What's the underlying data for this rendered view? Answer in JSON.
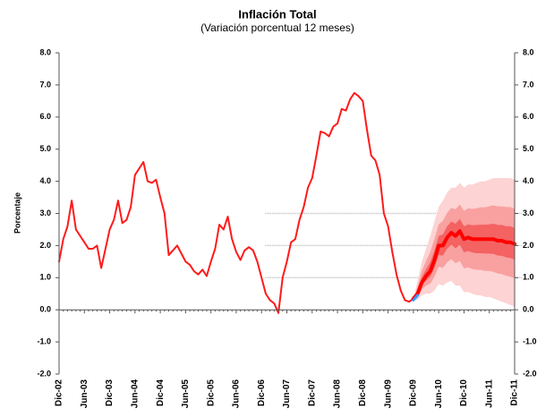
{
  "chart_data": {
    "type": "fan",
    "title": "Inflación Total",
    "subtitle": "(Variación porcentual 12 meses)",
    "y_label": "Porcentaje",
    "ylim": [
      -2,
      8
    ],
    "yticks": [
      {
        "value": -2,
        "label": "-2.0"
      },
      {
        "value": -1,
        "label": "-1.0"
      },
      {
        "value": 0,
        "label": "0.0"
      },
      {
        "value": 1,
        "label": "1.0"
      },
      {
        "value": 2,
        "label": "2.0"
      },
      {
        "value": 3,
        "label": "3.0"
      },
      {
        "value": 4,
        "label": "4.0"
      },
      {
        "value": 5,
        "label": "5.0"
      },
      {
        "value": 6,
        "label": "6.0"
      },
      {
        "value": 7,
        "label": "7.0"
      },
      {
        "value": 8,
        "label": "8.0"
      }
    ],
    "right_axis": true,
    "grid": false,
    "reference_lines": [
      1,
      2,
      3
    ],
    "reference_color": "#bbbbbb",
    "categories": [
      "Dic-02",
      null,
      null,
      null,
      null,
      null,
      "Jun-03",
      null,
      null,
      null,
      null,
      null,
      "Dic-03",
      null,
      null,
      null,
      null,
      null,
      "Jun-04",
      null,
      null,
      null,
      null,
      null,
      "Dic-04",
      null,
      null,
      null,
      null,
      null,
      "Jun-05",
      null,
      null,
      null,
      null,
      null,
      "Dic-05",
      null,
      null,
      null,
      null,
      null,
      "Jun-06",
      null,
      null,
      null,
      null,
      null,
      "Dic-06",
      null,
      null,
      null,
      null,
      null,
      "Jun-07",
      null,
      null,
      null,
      null,
      null,
      "Dic-07",
      null,
      null,
      null,
      null,
      null,
      "Jun-08",
      null,
      null,
      null,
      null,
      null,
      "Dic-08",
      null,
      null,
      null,
      null,
      null,
      "Jun-09",
      null,
      null,
      null,
      null,
      null,
      "Dic-09",
      null,
      null,
      null,
      null,
      null,
      "Jun-10",
      null,
      null,
      null,
      null,
      null,
      "Dic-10",
      null,
      null,
      null,
      null,
      null,
      "Jun-11",
      null,
      null,
      null,
      null,
      null,
      "Dic-11"
    ],
    "series": [
      {
        "color": "#ff1a1a",
        "width": 2,
        "values": [
          1.5,
          2.2,
          2.6,
          3.4,
          2.5,
          2.3,
          2.1,
          1.9,
          1.9,
          2.0,
          1.3,
          1.9,
          2.5,
          2.8,
          3.4,
          2.7,
          2.8,
          3.2,
          4.2,
          4.4,
          4.6,
          4.0,
          3.95,
          4.05,
          3.5,
          3.0,
          1.7,
          1.85,
          2.0,
          1.75,
          1.5,
          1.4,
          1.2,
          1.1,
          1.25,
          1.05,
          1.5,
          1.9,
          2.65,
          2.5,
          2.9,
          2.2,
          1.8,
          1.55,
          1.85,
          1.95,
          1.85,
          1.5,
          1.0,
          0.5,
          0.3,
          0.2,
          -0.1,
          1.0,
          1.5,
          2.1,
          2.2,
          2.8,
          3.2,
          3.8,
          4.1,
          4.8,
          5.55,
          5.5,
          5.4,
          5.7,
          5.8,
          6.25,
          6.2,
          6.55,
          6.75,
          6.65,
          6.5,
          5.6,
          4.8,
          4.65,
          4.2,
          3.0,
          2.6,
          1.8,
          1.1,
          0.6,
          0.3,
          0.25,
          0.35,
          null,
          null,
          null,
          null,
          null,
          null,
          null,
          null,
          null,
          null,
          null,
          null,
          null,
          null,
          null,
          null,
          null,
          null,
          null,
          null,
          null,
          null,
          null,
          null
        ]
      },
      {
        "color": "#ff0000",
        "width": 4,
        "values": [
          null,
          null,
          null,
          null,
          null,
          null,
          null,
          null,
          null,
          null,
          null,
          null,
          null,
          null,
          null,
          null,
          null,
          null,
          null,
          null,
          null,
          null,
          null,
          null,
          null,
          null,
          null,
          null,
          null,
          null,
          null,
          null,
          null,
          null,
          null,
          null,
          null,
          null,
          null,
          null,
          null,
          null,
          null,
          null,
          null,
          null,
          null,
          null,
          null,
          null,
          null,
          null,
          null,
          null,
          null,
          null,
          null,
          null,
          null,
          null,
          null,
          null,
          null,
          null,
          null,
          null,
          null,
          null,
          null,
          null,
          null,
          null,
          null,
          null,
          null,
          null,
          null,
          null,
          null,
          null,
          null,
          null,
          null,
          null,
          0.35,
          0.5,
          0.85,
          1.05,
          1.2,
          1.55,
          2.0,
          2.0,
          2.25,
          2.4,
          2.3,
          2.45,
          2.2,
          2.25,
          2.2,
          2.2,
          2.2,
          2.2,
          2.2,
          2.2,
          2.15,
          2.15,
          2.1,
          2.1,
          2.05
        ]
      },
      {
        "color": "#3399ff",
        "width": 3,
        "values": [
          null,
          null,
          null,
          null,
          null,
          null,
          null,
          null,
          null,
          null,
          null,
          null,
          null,
          null,
          null,
          null,
          null,
          null,
          null,
          null,
          null,
          null,
          null,
          null,
          null,
          null,
          null,
          null,
          null,
          null,
          null,
          null,
          null,
          null,
          null,
          null,
          null,
          null,
          null,
          null,
          null,
          null,
          null,
          null,
          null,
          null,
          null,
          null,
          null,
          null,
          null,
          null,
          null,
          null,
          null,
          null,
          null,
          null,
          null,
          null,
          null,
          null,
          null,
          null,
          null,
          null,
          null,
          null,
          null,
          null,
          null,
          null,
          null,
          null,
          null,
          null,
          null,
          null,
          null,
          null,
          null,
          null,
          null,
          null,
          0.3,
          0.45,
          null,
          null,
          null,
          null,
          null,
          null,
          null,
          null,
          null,
          null,
          null,
          null,
          null,
          null,
          null,
          null,
          null,
          null,
          null,
          null,
          null,
          null,
          null
        ]
      }
    ],
    "bands": [
      {
        "color": "#fdd3d3",
        "upper": [
          null,
          null,
          null,
          null,
          null,
          null,
          null,
          null,
          null,
          null,
          null,
          null,
          null,
          null,
          null,
          null,
          null,
          null,
          null,
          null,
          null,
          null,
          null,
          null,
          null,
          null,
          null,
          null,
          null,
          null,
          null,
          null,
          null,
          null,
          null,
          null,
          null,
          null,
          null,
          null,
          null,
          null,
          null,
          null,
          null,
          null,
          null,
          null,
          null,
          null,
          null,
          null,
          null,
          null,
          null,
          null,
          null,
          null,
          null,
          null,
          null,
          null,
          null,
          null,
          null,
          null,
          null,
          null,
          null,
          null,
          null,
          null,
          null,
          null,
          null,
          null,
          null,
          null,
          null,
          null,
          null,
          null,
          null,
          null,
          0.35,
          0.9,
          1.5,
          1.9,
          2.3,
          2.75,
          3.2,
          3.4,
          3.65,
          3.8,
          3.8,
          3.95,
          3.8,
          3.9,
          3.9,
          3.95,
          4.0,
          4.0,
          4.05,
          4.1,
          4.1,
          4.1,
          4.1,
          4.1,
          4.05
        ],
        "lower": [
          null,
          null,
          null,
          null,
          null,
          null,
          null,
          null,
          null,
          null,
          null,
          null,
          null,
          null,
          null,
          null,
          null,
          null,
          null,
          null,
          null,
          null,
          null,
          null,
          null,
          null,
          null,
          null,
          null,
          null,
          null,
          null,
          null,
          null,
          null,
          null,
          null,
          null,
          null,
          null,
          null,
          null,
          null,
          null,
          null,
          null,
          null,
          null,
          null,
          null,
          null,
          null,
          null,
          null,
          null,
          null,
          null,
          null,
          null,
          null,
          null,
          null,
          null,
          null,
          null,
          null,
          null,
          null,
          null,
          null,
          null,
          null,
          null,
          null,
          null,
          null,
          null,
          null,
          null,
          null,
          null,
          null,
          null,
          null,
          0.35,
          0.3,
          0.45,
          0.5,
          0.5,
          0.6,
          0.8,
          0.75,
          0.85,
          0.9,
          0.75,
          0.75,
          0.55,
          0.55,
          0.5,
          0.45,
          0.45,
          0.4,
          0.4,
          0.35,
          0.3,
          0.25,
          0.2,
          0.15,
          0.1
        ]
      },
      {
        "color": "#f9a0a0",
        "upper": [
          null,
          null,
          null,
          null,
          null,
          null,
          null,
          null,
          null,
          null,
          null,
          null,
          null,
          null,
          null,
          null,
          null,
          null,
          null,
          null,
          null,
          null,
          null,
          null,
          null,
          null,
          null,
          null,
          null,
          null,
          null,
          null,
          null,
          null,
          null,
          null,
          null,
          null,
          null,
          null,
          null,
          null,
          null,
          null,
          null,
          null,
          null,
          null,
          null,
          null,
          null,
          null,
          null,
          null,
          null,
          null,
          null,
          null,
          null,
          null,
          null,
          null,
          null,
          null,
          null,
          null,
          null,
          null,
          null,
          null,
          null,
          null,
          null,
          null,
          null,
          null,
          null,
          null,
          null,
          null,
          null,
          null,
          null,
          null,
          0.35,
          0.72,
          1.21,
          1.52,
          1.8,
          2.21,
          2.66,
          2.77,
          3.02,
          3.17,
          3.13,
          3.28,
          3.08,
          3.16,
          3.14,
          3.16,
          3.19,
          3.19,
          3.22,
          3.25,
          3.22,
          3.22,
          3.2,
          3.2,
          3.15
        ],
        "lower": [
          null,
          null,
          null,
          null,
          null,
          null,
          null,
          null,
          null,
          null,
          null,
          null,
          null,
          null,
          null,
          null,
          null,
          null,
          null,
          null,
          null,
          null,
          null,
          null,
          null,
          null,
          null,
          null,
          null,
          null,
          null,
          null,
          null,
          null,
          null,
          null,
          null,
          null,
          null,
          null,
          null,
          null,
          null,
          null,
          null,
          null,
          null,
          null,
          null,
          null,
          null,
          null,
          null,
          null,
          null,
          null,
          null,
          null,
          null,
          null,
          null,
          null,
          null,
          null,
          null,
          null,
          null,
          null,
          null,
          null,
          null,
          null,
          null,
          null,
          null,
          null,
          null,
          null,
          null,
          null,
          null,
          null,
          null,
          null,
          0.35,
          0.39,
          0.63,
          0.75,
          0.81,
          1.03,
          1.34,
          1.31,
          1.48,
          1.58,
          1.45,
          1.52,
          1.29,
          1.32,
          1.27,
          1.24,
          1.24,
          1.21,
          1.21,
          1.18,
          1.13,
          1.11,
          1.06,
          1.03,
          0.98
        ]
      },
      {
        "color": "#f46262",
        "upper": [
          null,
          null,
          null,
          null,
          null,
          null,
          null,
          null,
          null,
          null,
          null,
          null,
          null,
          null,
          null,
          null,
          null,
          null,
          null,
          null,
          null,
          null,
          null,
          null,
          null,
          null,
          null,
          null,
          null,
          null,
          null,
          null,
          null,
          null,
          null,
          null,
          null,
          null,
          null,
          null,
          null,
          null,
          null,
          null,
          null,
          null,
          null,
          null,
          null,
          null,
          null,
          null,
          null,
          null,
          null,
          null,
          null,
          null,
          null,
          null,
          null,
          null,
          null,
          null,
          null,
          null,
          null,
          null,
          null,
          null,
          null,
          null,
          null,
          null,
          null,
          null,
          null,
          null,
          null,
          null,
          null,
          null,
          null,
          null,
          0.35,
          0.6,
          1.01,
          1.26,
          1.48,
          1.85,
          2.3,
          2.35,
          2.6,
          2.75,
          2.68,
          2.83,
          2.6,
          2.66,
          2.63,
          2.64,
          2.65,
          2.65,
          2.66,
          2.68,
          2.64,
          2.64,
          2.6,
          2.6,
          2.55
        ],
        "lower": [
          null,
          null,
          null,
          null,
          null,
          null,
          null,
          null,
          null,
          null,
          null,
          null,
          null,
          null,
          null,
          null,
          null,
          null,
          null,
          null,
          null,
          null,
          null,
          null,
          null,
          null,
          null,
          null,
          null,
          null,
          null,
          null,
          null,
          null,
          null,
          null,
          null,
          null,
          null,
          null,
          null,
          null,
          null,
          null,
          null,
          null,
          null,
          null,
          null,
          null,
          null,
          null,
          null,
          null,
          null,
          null,
          null,
          null,
          null,
          null,
          null,
          null,
          null,
          null,
          null,
          null,
          null,
          null,
          null,
          null,
          null,
          null,
          null,
          null,
          null,
          null,
          null,
          null,
          null,
          null,
          null,
          null,
          null,
          null,
          0.35,
          0.45,
          0.75,
          0.91,
          1.03,
          1.31,
          1.7,
          1.69,
          1.9,
          2.03,
          1.91,
          2.03,
          1.79,
          1.83,
          1.78,
          1.76,
          1.76,
          1.75,
          1.75,
          1.74,
          1.69,
          1.68,
          1.63,
          1.61,
          1.56
        ]
      }
    ]
  }
}
